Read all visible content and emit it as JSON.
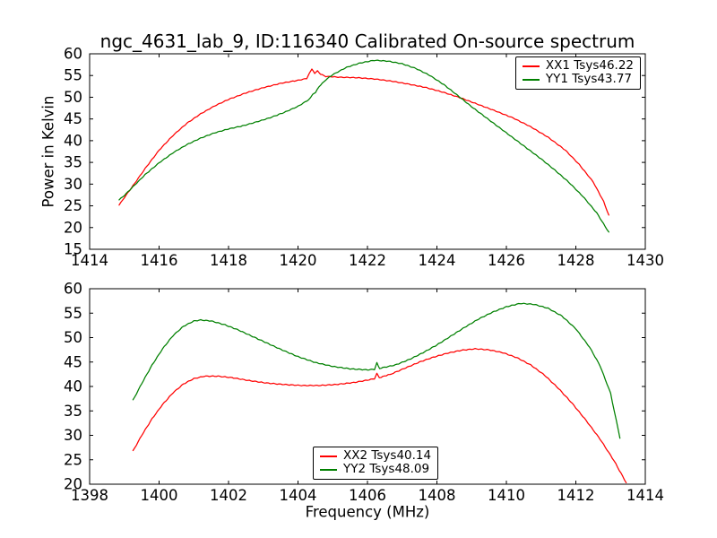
{
  "title": "ngc_4631_lab_9, ID:116340 Calibrated On-source spectrum",
  "background_color": "#ffffff",
  "axis_color": "#000000",
  "chart_data": [
    {
      "type": "line",
      "ylabel": "Power in Kelvin",
      "xlabel": "",
      "xlim": [
        1414,
        1430
      ],
      "ylim": [
        15,
        60
      ],
      "x_ticks": [
        1414,
        1416,
        1418,
        1420,
        1422,
        1424,
        1426,
        1428,
        1430
      ],
      "y_ticks": [
        15,
        20,
        25,
        30,
        35,
        40,
        45,
        50,
        55,
        60
      ],
      "grid": false,
      "legend_position": "upper right",
      "series": [
        {
          "name": "XX1",
          "label": "XX1 Tsys46.22",
          "color": "#ff0000",
          "points": [
            [
              1414.85,
              25.2
            ],
            [
              1415.0,
              26.9
            ],
            [
              1415.3,
              30.2
            ],
            [
              1415.6,
              33.6
            ],
            [
              1416.0,
              37.8
            ],
            [
              1416.4,
              41.2
            ],
            [
              1416.8,
              44.0
            ],
            [
              1417.2,
              46.2
            ],
            [
              1417.6,
              48.0
            ],
            [
              1418.0,
              49.5
            ],
            [
              1418.5,
              51.0
            ],
            [
              1419.0,
              52.2
            ],
            [
              1419.5,
              53.2
            ],
            [
              1420.0,
              53.9
            ],
            [
              1420.25,
              54.3
            ],
            [
              1420.33,
              55.5
            ],
            [
              1420.4,
              56.5
            ],
            [
              1420.48,
              55.4
            ],
            [
              1420.56,
              56.2
            ],
            [
              1420.65,
              55.3
            ],
            [
              1420.8,
              54.8
            ],
            [
              1421.2,
              54.6
            ],
            [
              1421.7,
              54.5
            ],
            [
              1422.2,
              54.2
            ],
            [
              1422.7,
              53.7
            ],
            [
              1423.2,
              53.0
            ],
            [
              1423.7,
              52.2
            ],
            [
              1424.2,
              51.1
            ],
            [
              1424.7,
              49.8
            ],
            [
              1425.2,
              48.3
            ],
            [
              1425.7,
              46.8
            ],
            [
              1426.2,
              45.2
            ],
            [
              1426.7,
              43.2
            ],
            [
              1427.2,
              40.8
            ],
            [
              1427.7,
              37.8
            ],
            [
              1428.1,
              34.5
            ],
            [
              1428.5,
              30.5
            ],
            [
              1428.8,
              26.0
            ],
            [
              1428.95,
              22.8
            ]
          ]
        },
        {
          "name": "YY1",
          "label": "YY1 Tsys43.77",
          "color": "#008000",
          "points": [
            [
              1414.85,
              26.4
            ],
            [
              1415.0,
              27.4
            ],
            [
              1415.3,
              29.8
            ],
            [
              1415.6,
              32.2
            ],
            [
              1416.0,
              34.9
            ],
            [
              1416.4,
              37.2
            ],
            [
              1416.8,
              39.1
            ],
            [
              1417.2,
              40.6
            ],
            [
              1417.6,
              41.8
            ],
            [
              1418.0,
              42.7
            ],
            [
              1418.4,
              43.4
            ],
            [
              1418.8,
              44.3
            ],
            [
              1419.2,
              45.3
            ],
            [
              1419.6,
              46.5
            ],
            [
              1420.0,
              47.9
            ],
            [
              1420.3,
              49.4
            ],
            [
              1420.42,
              50.6
            ],
            [
              1420.5,
              51.0
            ],
            [
              1420.6,
              52.4
            ],
            [
              1420.8,
              54.0
            ],
            [
              1421.0,
              55.2
            ],
            [
              1421.4,
              56.9
            ],
            [
              1421.8,
              57.9
            ],
            [
              1422.2,
              58.5
            ],
            [
              1422.6,
              58.3
            ],
            [
              1423.0,
              57.7
            ],
            [
              1423.4,
              56.6
            ],
            [
              1423.8,
              55.0
            ],
            [
              1424.2,
              52.9
            ],
            [
              1424.6,
              50.4
            ],
            [
              1425.0,
              47.8
            ],
            [
              1425.4,
              45.4
            ],
            [
              1425.8,
              43.0
            ],
            [
              1426.2,
              40.6
            ],
            [
              1426.6,
              38.2
            ],
            [
              1427.0,
              35.8
            ],
            [
              1427.4,
              33.2
            ],
            [
              1427.8,
              30.4
            ],
            [
              1428.2,
              27.2
            ],
            [
              1428.6,
              23.4
            ],
            [
              1428.95,
              18.9
            ]
          ]
        }
      ]
    },
    {
      "type": "line",
      "ylabel": "",
      "xlabel": "Frequency (MHz)",
      "xlim": [
        1398,
        1414
      ],
      "ylim": [
        20,
        60
      ],
      "x_ticks": [
        1398,
        1400,
        1402,
        1404,
        1406,
        1408,
        1410,
        1412,
        1414
      ],
      "y_ticks": [
        20,
        25,
        30,
        35,
        40,
        45,
        50,
        55,
        60
      ],
      "grid": false,
      "legend_position": "lower center",
      "series": [
        {
          "name": "XX2",
          "label": "XX2 Tsys40.14",
          "color": "#ff0000",
          "points": [
            [
              1399.25,
              26.8
            ],
            [
              1399.5,
              30.0
            ],
            [
              1399.8,
              33.4
            ],
            [
              1400.1,
              36.3
            ],
            [
              1400.4,
              38.7
            ],
            [
              1400.7,
              40.5
            ],
            [
              1401.0,
              41.6
            ],
            [
              1401.3,
              42.1
            ],
            [
              1401.7,
              42.1
            ],
            [
              1402.1,
              41.8
            ],
            [
              1402.6,
              41.2
            ],
            [
              1403.1,
              40.7
            ],
            [
              1403.6,
              40.4
            ],
            [
              1404.1,
              40.2
            ],
            [
              1404.6,
              40.2
            ],
            [
              1405.1,
              40.4
            ],
            [
              1405.6,
              40.8
            ],
            [
              1406.0,
              41.3
            ],
            [
              1406.2,
              41.6
            ],
            [
              1406.27,
              42.7
            ],
            [
              1406.34,
              41.8
            ],
            [
              1406.7,
              42.6
            ],
            [
              1407.1,
              43.8
            ],
            [
              1407.5,
              45.0
            ],
            [
              1407.9,
              46.0
            ],
            [
              1408.3,
              46.8
            ],
            [
              1408.7,
              47.4
            ],
            [
              1409.1,
              47.7
            ],
            [
              1409.5,
              47.5
            ],
            [
              1409.9,
              46.9
            ],
            [
              1410.3,
              45.9
            ],
            [
              1410.7,
              44.4
            ],
            [
              1411.1,
              42.3
            ],
            [
              1411.5,
              39.6
            ],
            [
              1411.9,
              36.5
            ],
            [
              1412.3,
              33.0
            ],
            [
              1412.7,
              29.2
            ],
            [
              1413.1,
              24.8
            ],
            [
              1413.45,
              20.3
            ]
          ]
        },
        {
          "name": "YY2",
          "label": "YY2 Tsys48.09",
          "color": "#008000",
          "points": [
            [
              1399.25,
              37.2
            ],
            [
              1399.5,
              40.6
            ],
            [
              1399.8,
              44.4
            ],
            [
              1400.1,
              47.7
            ],
            [
              1400.4,
              50.4
            ],
            [
              1400.7,
              52.3
            ],
            [
              1401.0,
              53.4
            ],
            [
              1401.2,
              53.6
            ],
            [
              1401.5,
              53.4
            ],
            [
              1401.9,
              52.6
            ],
            [
              1402.3,
              51.5
            ],
            [
              1402.7,
              50.2
            ],
            [
              1403.1,
              48.9
            ],
            [
              1403.5,
              47.6
            ],
            [
              1404.0,
              46.1
            ],
            [
              1404.5,
              44.9
            ],
            [
              1405.0,
              44.1
            ],
            [
              1405.5,
              43.6
            ],
            [
              1406.0,
              43.4
            ],
            [
              1406.2,
              43.5
            ],
            [
              1406.27,
              44.9
            ],
            [
              1406.35,
              43.7
            ],
            [
              1406.8,
              44.4
            ],
            [
              1407.2,
              45.5
            ],
            [
              1407.6,
              46.9
            ],
            [
              1408.0,
              48.5
            ],
            [
              1408.4,
              50.3
            ],
            [
              1408.8,
              52.1
            ],
            [
              1409.2,
              53.8
            ],
            [
              1409.6,
              55.2
            ],
            [
              1410.0,
              56.3
            ],
            [
              1410.4,
              57.0
            ],
            [
              1410.8,
              56.8
            ],
            [
              1411.2,
              56.0
            ],
            [
              1411.6,
              54.4
            ],
            [
              1412.0,
              51.8
            ],
            [
              1412.4,
              48.0
            ],
            [
              1412.7,
              44.2
            ],
            [
              1413.0,
              38.6
            ],
            [
              1413.27,
              29.5
            ]
          ]
        }
      ]
    }
  ]
}
